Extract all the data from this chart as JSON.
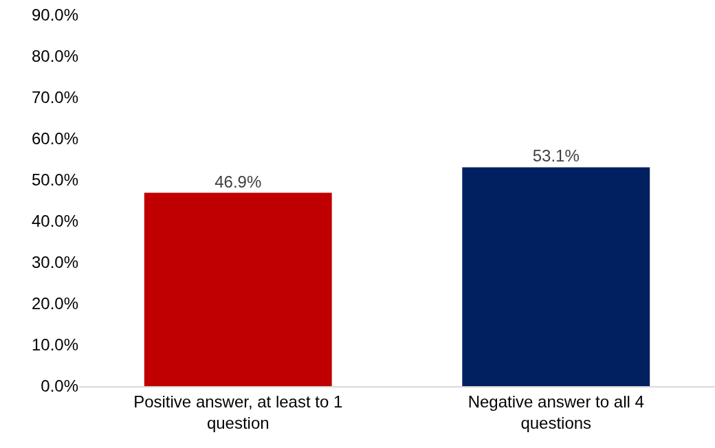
{
  "chart_data": {
    "type": "bar",
    "categories": [
      "Positive answer, at least to 1 question",
      "Negative answer to all 4 questions"
    ],
    "values": [
      46.9,
      53.1
    ],
    "colors": [
      "#c00000",
      "#002060"
    ],
    "value_labels": [
      "46.9%",
      "53.1%"
    ],
    "ylim": [
      0,
      90
    ],
    "yticks": [
      {
        "value": 0,
        "label": "0.0%"
      },
      {
        "value": 10,
        "label": "10.0%"
      },
      {
        "value": 20,
        "label": "20.0%"
      },
      {
        "value": 30,
        "label": "30.0%"
      },
      {
        "value": 40,
        "label": "40.0%"
      },
      {
        "value": 50,
        "label": "50.0%"
      },
      {
        "value": 60,
        "label": "60.0%"
      },
      {
        "value": 70,
        "label": "70.0%"
      },
      {
        "value": 80,
        "label": "80.0%"
      },
      {
        "value": 90,
        "label": "90.0%"
      }
    ],
    "grid": false
  }
}
